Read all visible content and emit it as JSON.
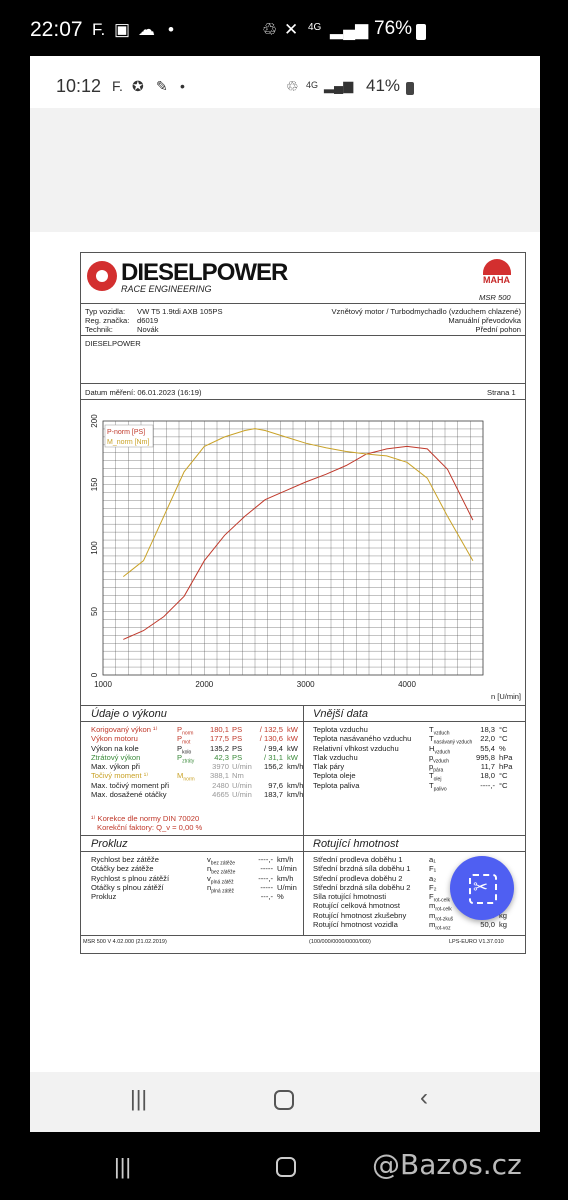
{
  "outer_status": {
    "time": "22:07",
    "left_icons": [
      "f-icon",
      "image-icon",
      "cloud-icon",
      "dot-icon"
    ],
    "net": "4G",
    "battery": "76%"
  },
  "inner_status": {
    "time": "10:12",
    "left_icons": [
      "f-icon",
      "messenger-icon",
      "bell-icon",
      "dot-icon"
    ],
    "net": "4G",
    "battery": "41%"
  },
  "report": {
    "brand": "DIESELPOWER",
    "brand_sub": "RACE ENGINEERING",
    "maha": "MAHA",
    "msr": "MSR 500",
    "info_left": [
      [
        "Typ vozidla:",
        "VW T5 1.9tdi AXB 105PS"
      ],
      [
        "Reg. značka:",
        "d6019"
      ],
      [
        "Technik:",
        "Novák"
      ]
    ],
    "info_right": [
      "Vznětový motor / Turbodmychadlo (vzduchem chlazené)",
      "Manuální převodovka",
      "Přední pohon"
    ],
    "notes": "DIESELPOWER",
    "date": "Datum měření: 06.01.2023 (16:19)",
    "page": "Strana 1"
  },
  "chart_data": {
    "type": "line",
    "title": "",
    "xlabel": "n [U/min]",
    "xlim": [
      1000,
      4750
    ],
    "x_ticks": [
      "1000",
      "2000",
      "3000",
      "4000"
    ],
    "left_axis": {
      "label": "P-norm [PS]",
      "lim": [
        0,
        200
      ],
      "ticks": [
        "0",
        "50",
        "100",
        "150",
        "200"
      ]
    },
    "right_axis": {
      "label": "M_norm [Nm]",
      "lim": [
        0,
        400
      ],
      "ticks": [
        "0",
        "100",
        "200",
        "300",
        "400"
      ]
    },
    "grid": true,
    "legend": "top-left",
    "series": [
      {
        "name": "P-norm [PS]",
        "color": "#c0392b",
        "axis": "left",
        "x": [
          1200,
          1400,
          1600,
          1800,
          2000,
          2200,
          2400,
          2600,
          2800,
          3000,
          3200,
          3400,
          3600,
          3800,
          4000,
          4200,
          4400,
          4650
        ],
        "y": [
          28,
          35,
          46,
          62,
          90,
          110,
          125,
          138,
          145,
          152,
          158,
          165,
          174,
          178,
          180,
          178,
          162,
          122
        ]
      },
      {
        "name": "M_norm [Nm]",
        "color": "#c9a227",
        "axis": "right",
        "x": [
          1200,
          1400,
          1600,
          1800,
          2000,
          2200,
          2400,
          2500,
          2600,
          2800,
          3000,
          3200,
          3400,
          3600,
          3800,
          4000,
          4200,
          4400,
          4650
        ],
        "y": [
          155,
          180,
          250,
          320,
          360,
          375,
          385,
          388,
          385,
          375,
          365,
          358,
          352,
          348,
          345,
          335,
          310,
          250,
          180
        ]
      }
    ]
  },
  "udaje": {
    "title": "Údaje o výkonu",
    "rows": [
      {
        "label": "Korigovaný výkon ¹⁾",
        "sym": "P_norm",
        "v1": "180,1",
        "u1": "PS",
        "v2": "132,5",
        "u2": "kW",
        "cls": "red"
      },
      {
        "label": "Výkon motoru",
        "sym": "P_mot",
        "v1": "177,5",
        "u1": "PS",
        "v2": "130,6",
        "u2": "kW",
        "cls": "red"
      },
      {
        "label": "Výkon na kole",
        "sym": "P_kolo",
        "v1": "135,2",
        "u1": "PS",
        "v2": "99,4",
        "u2": "kW",
        "cls": ""
      },
      {
        "label": "Ztrátový výkon",
        "sym": "P_ztráty",
        "v1": "42,3",
        "u1": "PS",
        "v2": "31,1",
        "u2": "kW",
        "cls": "green"
      },
      {
        "label": "Max. výkon při",
        "sym": "",
        "v1": "3970",
        "u1": "U/min",
        "v2": "156,2",
        "u2": "km/h",
        "cls": ""
      },
      {
        "label": "Točivý moment ¹⁾",
        "sym": "M_norm",
        "v1": "388,1",
        "u1": "Nm",
        "v2": "",
        "u2": "",
        "cls": "gold"
      },
      {
        "label": "Max. točivý moment při",
        "sym": "",
        "v1": "2480",
        "u1": "U/min",
        "v2": "97,6",
        "u2": "km/h",
        "cls": ""
      },
      {
        "label": "Max. dosažené otáčky",
        "sym": "",
        "v1": "4665",
        "u1": "U/min",
        "v2": "183,7",
        "u2": "km/h",
        "cls": ""
      }
    ],
    "korekce": "¹⁾ Korekce dle normy DIN 70020",
    "faktor": "Korekční faktory: Q_v = 0,00 %"
  },
  "vnejsi": {
    "title": "Vnější data",
    "rows": [
      {
        "label": "Teplota vzduchu",
        "sym": "T_vzduch",
        "val": "18,3",
        "unit": "°C"
      },
      {
        "label": "Teplota nasávaného vzduchu",
        "sym": "T_nasávaný vzduch",
        "val": "22,0",
        "unit": "°C"
      },
      {
        "label": "Relativní vlhkost vzduchu",
        "sym": "H_vzduch",
        "val": "55,4",
        "unit": "%"
      },
      {
        "label": "Tlak vzduchu",
        "sym": "p_vzduch",
        "val": "995,8",
        "unit": "hPa"
      },
      {
        "label": "Tlak páry",
        "sym": "p_pára",
        "val": "11,7",
        "unit": "hPa"
      },
      {
        "label": "Teplota oleje",
        "sym": "T_olej",
        "val": "18,0",
        "unit": "°C"
      },
      {
        "label": "Teplota paliva",
        "sym": "T_palivo",
        "val": "----,-",
        "unit": "°C"
      }
    ]
  },
  "prokluz": {
    "title": "Prokluz",
    "rows": [
      {
        "label": "Rychlost bez zátěže",
        "sym": "v_bez zátěže",
        "val": "----,-",
        "unit": "km/h"
      },
      {
        "label": "Otáčky bez zátěže",
        "sym": "n_bez zátěže",
        "val": "-----",
        "unit": "U/min"
      },
      {
        "label": "Rychlost s plnou zátěží",
        "sym": "v_plná zátěž",
        "val": "----,-",
        "unit": "km/h"
      },
      {
        "label": "Otáčky s plnou zátěží",
        "sym": "n_plná zátěž",
        "val": "-----",
        "unit": "U/min"
      },
      {
        "label": "Prokluz",
        "sym": "",
        "val": "---,-",
        "unit": "%"
      }
    ]
  },
  "rotujici": {
    "title": "Rotující hmotnost",
    "rows": [
      {
        "label": "Střední prodleva doběhu 1",
        "sym": "a₁",
        "val": "",
        "unit": ""
      },
      {
        "label": "Střední brzdná síla doběhu 1",
        "sym": "F₁",
        "val": "",
        "unit": ""
      },
      {
        "label": "Střední prodleva doběhu 2",
        "sym": "a₂",
        "val": "",
        "unit": ""
      },
      {
        "label": "Střední brzdná síla doběhu 2",
        "sym": "F₂",
        "val": "",
        "unit": ""
      },
      {
        "label": "Síla rotující hmotnosti",
        "sym": "F_rot-celk",
        "val": "",
        "unit": ""
      },
      {
        "label": "Rotující celková hmotnost",
        "sym": "m_rot-celk",
        "val": "",
        "unit": ""
      },
      {
        "label": "Rotující hmotnost zkušebny",
        "sym": "m_rot-zkuš",
        "val": "280,0",
        "unit": "kg"
      },
      {
        "label": "Rotující hmotnost vozidla",
        "sym": "m_rot-voz",
        "val": "50,0",
        "unit": "kg"
      }
    ]
  },
  "footer": {
    "left": "MSR 500 V 4.02.000 (21.02.2019)",
    "mid": "(100/000/0000/0000/000)",
    "right": "LPS-EURO V1.37.010"
  },
  "bottom_watermark": "@Bazos.cz"
}
